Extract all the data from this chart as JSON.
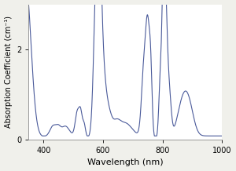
{
  "title": "",
  "xlabel": "Wavelength (nm)",
  "ylabel": "Absorption Coefficient (cm⁻¹)",
  "xlim": [
    350,
    1000
  ],
  "ylim": [
    0,
    3.0
  ],
  "yticks": [
    0,
    2
  ],
  "xticks": [
    400,
    600,
    800,
    1000
  ],
  "line_color": "#4a5a9a",
  "line_width": 0.8,
  "background_color": "#f0f0eb",
  "axes_background": "#ffffff"
}
